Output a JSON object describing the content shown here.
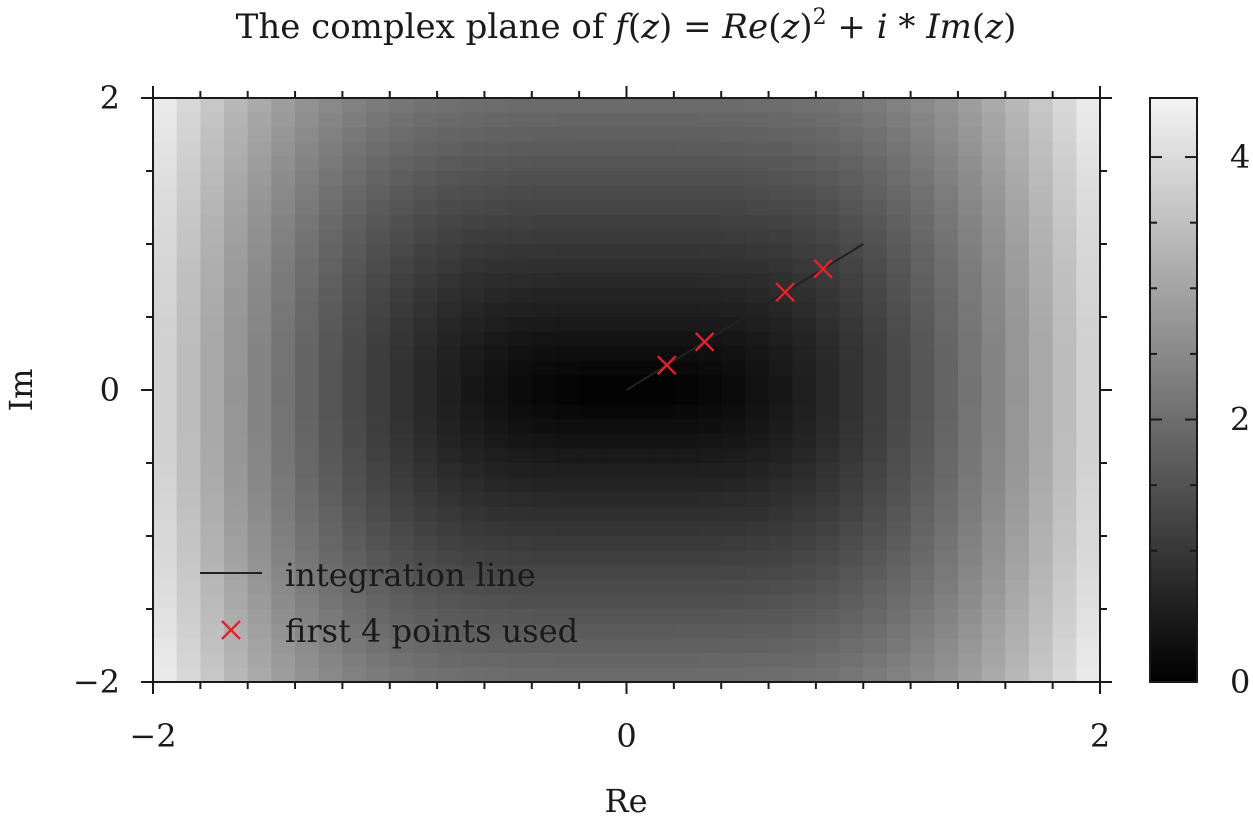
{
  "chart_data": {
    "type": "heatmap",
    "title_parts": [
      "The complex plane of ",
      "f",
      "(",
      "z",
      ") = ",
      "Re",
      "(",
      "z",
      ")",
      "2",
      " + ",
      "i",
      " * ",
      "Im",
      "(",
      "z",
      ")"
    ],
    "xlabel": "Re",
    "ylabel": "Im",
    "xlim": [
      -2,
      2
    ],
    "ylim": [
      -2,
      2
    ],
    "x_ticks": [
      -2,
      0,
      2
    ],
    "x_tick_labels": [
      "−2",
      "0",
      "2"
    ],
    "y_ticks": [
      -2,
      0,
      2
    ],
    "y_tick_labels": [
      "−2",
      "0",
      "2"
    ],
    "heatmap_grid": 40,
    "value": "abs(Re(z)^2 + i*Im(z))",
    "colorbar": {
      "range": [
        0,
        4.45
      ],
      "ticks": [
        0,
        2,
        4
      ],
      "tick_labels": [
        "0",
        "2",
        "4"
      ],
      "colormap": "gray"
    },
    "series": [
      {
        "name": "integration line",
        "type": "line",
        "color": "#222222",
        "x": [
          0,
          1.0
        ],
        "y": [
          0,
          1.0
        ]
      },
      {
        "name": "first 4 points used",
        "type": "scatter",
        "marker": "x",
        "color": "#e8202a",
        "x": [
          0.17,
          0.33,
          0.67,
          0.83
        ],
        "y": [
          0.17,
          0.33,
          0.67,
          0.83
        ]
      }
    ],
    "legend_position": "lower-left",
    "grid": false
  }
}
